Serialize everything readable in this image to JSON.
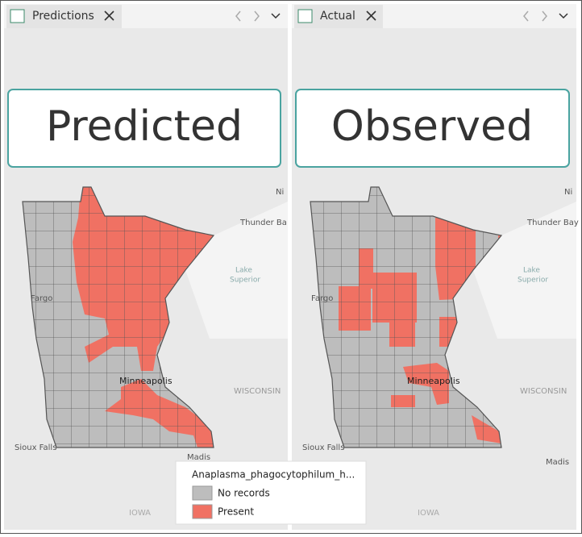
{
  "panels": [
    {
      "tab": "Predictions",
      "overlay": "Predicted",
      "labels": {
        "ni": "Ni",
        "thunder_bay": "Thunder Ba",
        "lake": [
          "Lake",
          "Superior"
        ],
        "fargo": "Fargo",
        "city": "Minneapolis",
        "state": "WISCONSIN",
        "sioux_falls": "Sioux Falls",
        "madison": "Madis",
        "iowa": "IOWA"
      }
    },
    {
      "tab": "Actual",
      "overlay": "Observed",
      "labels": {
        "ni": "Ni",
        "thunder_bay": "Thunder Bay",
        "lake": [
          "Lake",
          "Superior"
        ],
        "fargo": "Fargo",
        "city": "Minneapolis",
        "state": "WISCONSIN",
        "sioux_falls": "Sioux Falls",
        "madison": "Madis",
        "iowa": "IOWA"
      }
    }
  ],
  "legend": {
    "title": "Anaplasma_phagocytophilum_h...",
    "items": [
      "No records",
      "Present"
    ]
  }
}
